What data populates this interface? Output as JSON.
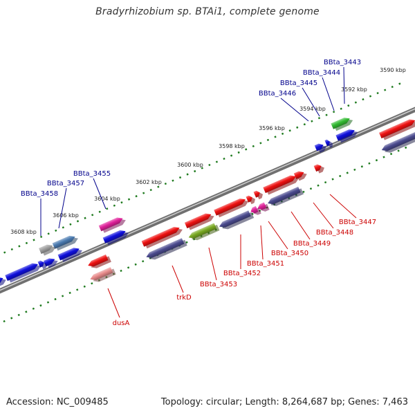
{
  "title": "Bradyrhizobium sp. BTAi1, complete genome",
  "footer": {
    "accession": "Accession: NC_009485",
    "topology": "Topology: circular; Length: 8,264,687 bp; Genes: 7,463"
  },
  "colors": {
    "backbone": "#707070",
    "tick": "#1e7a1e",
    "forward_label": "#00008b",
    "reverse_label": "#cc0000",
    "red": "#ee1111",
    "blue": "#1010dd",
    "purple": "#4a4a8e",
    "magenta": "#e0209a",
    "green": "#33bb33",
    "olive": "#7aaa22",
    "steel": "#4a7ab0",
    "grey": "#a0a0a0",
    "pink": "#e88a8a"
  },
  "scale_labels": [
    "3590 kbp",
    "3592 kbp",
    "3594 kbp",
    "3596 kbp",
    "3598 kbp",
    "3600 kbp",
    "3602 kbp",
    "3604 kbp",
    "3606 kbp",
    "3608 kbp"
  ],
  "forward_labels": [
    "BBta_3443",
    "BBta_3444",
    "BBta_3445",
    "BBta_3446",
    "BBta_3455",
    "BBta_3457",
    "BBta_3458"
  ],
  "reverse_labels": [
    "BBta_3447",
    "BBta_3448",
    "BBta_3449",
    "BBta_3450",
    "BBta_3451",
    "BBta_3452",
    "BBta_3453",
    "trkD",
    "dusA"
  ]
}
